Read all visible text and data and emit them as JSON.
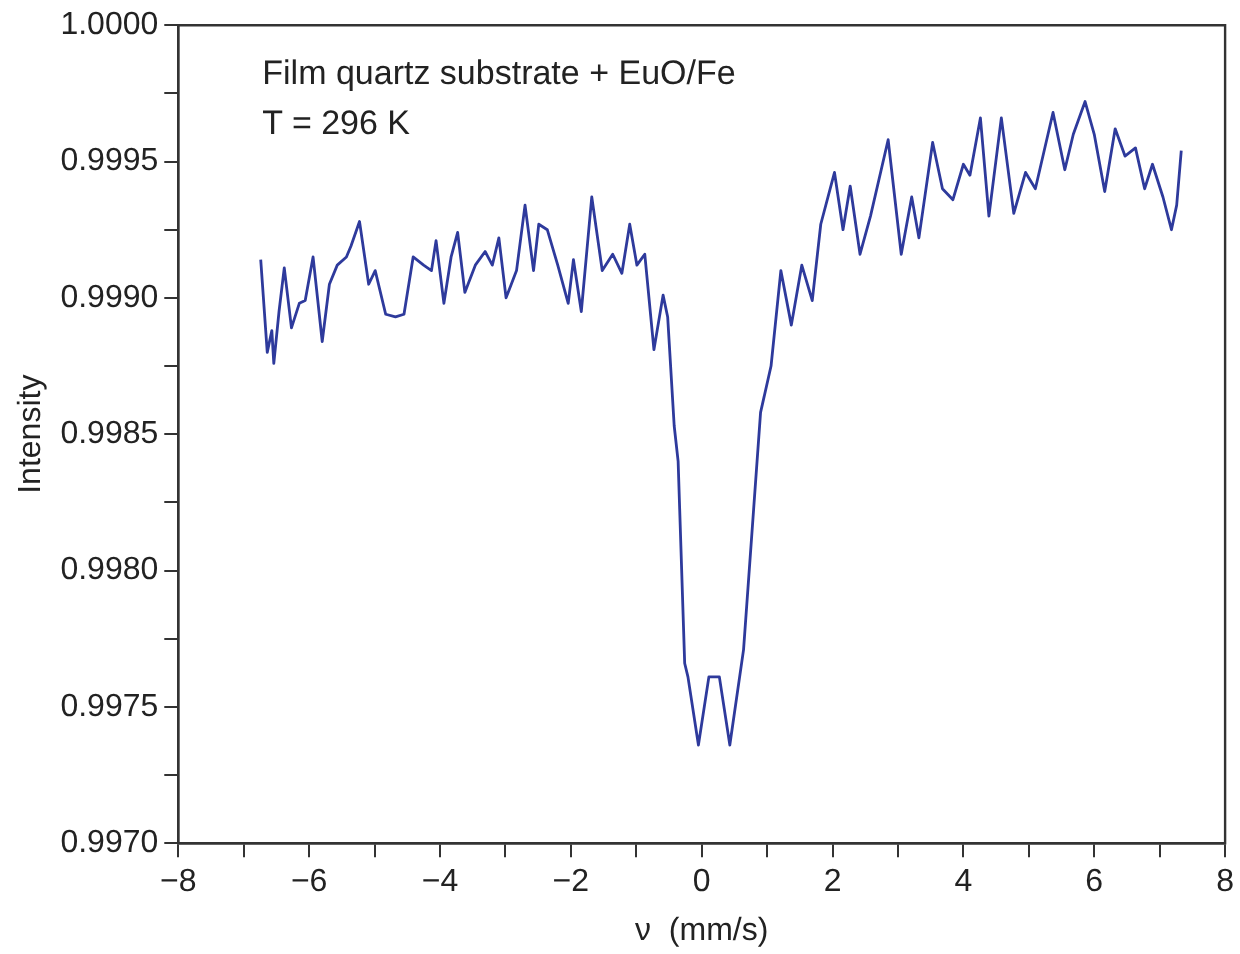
{
  "chart_data": {
    "type": "line",
    "xlabel": "ν  (mm/s)",
    "ylabel": "Intensity",
    "annotations": [
      "Film quartz substrate + EuO/Fe",
      "T = 296 K"
    ],
    "xlim": [
      -8,
      8
    ],
    "ylim": [
      0.997,
      1.0
    ],
    "xticks": [
      -8,
      {
        "value": -7,
        "label": null
      },
      -6,
      {
        "value": -5,
        "label": null
      },
      -4,
      {
        "value": -3,
        "label": null
      },
      -2,
      {
        "value": -1,
        "label": null
      },
      0,
      {
        "value": 1,
        "label": null
      },
      2,
      {
        "value": 3,
        "label": null
      },
      4,
      {
        "value": 5,
        "label": null
      },
      6,
      {
        "value": 7,
        "label": null
      },
      8
    ],
    "yticks": [
      {
        "value": 0.997,
        "label": "0.9970"
      },
      {
        "value": 0.99725,
        "label": null
      },
      {
        "value": 0.9975,
        "label": "0.9975"
      },
      {
        "value": 0.99775,
        "label": null
      },
      {
        "value": 0.998,
        "label": "0.9980"
      },
      {
        "value": 0.99825,
        "label": null
      },
      {
        "value": 0.9985,
        "label": "0.9985"
      },
      {
        "value": 0.99875,
        "label": null
      },
      {
        "value": 0.999,
        "label": "0.9990"
      },
      {
        "value": 0.99925,
        "label": null
      },
      {
        "value": 0.9995,
        "label": "0.9995"
      },
      {
        "value": 0.99975,
        "label": null
      },
      {
        "value": 1.0,
        "label": "1.0000"
      }
    ],
    "grid": false,
    "legend": false,
    "marker": "none",
    "line_style": "solid",
    "series": [
      {
        "color": "#2e3a9c",
        "x": [
          -6.74,
          -6.64,
          -6.57,
          -6.54,
          -6.46,
          -6.38,
          -6.27,
          -6.15,
          -6.06,
          -5.94,
          -5.8,
          -5.69,
          -5.57,
          -5.43,
          -5.36,
          -5.23,
          -5.09,
          -4.99,
          -4.83,
          -4.68,
          -4.55,
          -4.41,
          -4.25,
          -4.13,
          -4.06,
          -3.94,
          -3.83,
          -3.73,
          -3.62,
          -3.46,
          -3.31,
          -3.2,
          -3.1,
          -2.99,
          -2.83,
          -2.7,
          -2.57,
          -2.49,
          -2.36,
          -2.2,
          -2.04,
          -1.96,
          -1.84,
          -1.68,
          -1.52,
          -1.36,
          -1.22,
          -1.1,
          -0.99,
          -0.87,
          -0.73,
          -0.59,
          -0.52,
          -0.42,
          -0.36,
          -0.26,
          -0.21,
          -0.05,
          0.11,
          0.27,
          0.43,
          0.64,
          0.9,
          1.06,
          1.21,
          1.37,
          1.53,
          1.69,
          1.82,
          2.03,
          2.16,
          2.27,
          2.42,
          2.58,
          2.85,
          3.05,
          3.21,
          3.32,
          3.53,
          3.68,
          3.84,
          4.0,
          4.1,
          4.26,
          4.39,
          4.58,
          4.77,
          4.95,
          5.1,
          5.37,
          5.55,
          5.68,
          5.86,
          6.0,
          6.16,
          6.32,
          6.47,
          6.63,
          6.77,
          6.89,
          7.05,
          7.18,
          7.26,
          7.33
        ],
        "values": [
          0.99914,
          0.9988,
          0.99888,
          0.99876,
          0.99895,
          0.99911,
          0.99889,
          0.99898,
          0.99899,
          0.99915,
          0.99884,
          0.99905,
          0.99912,
          0.99915,
          0.99919,
          0.99928,
          0.99905,
          0.9991,
          0.99894,
          0.99893,
          0.99894,
          0.99915,
          0.99912,
          0.9991,
          0.99921,
          0.99898,
          0.99915,
          0.99924,
          0.99902,
          0.99912,
          0.99917,
          0.99912,
          0.99922,
          0.999,
          0.9991,
          0.99934,
          0.9991,
          0.99927,
          0.99925,
          0.99912,
          0.99898,
          0.99914,
          0.99895,
          0.99937,
          0.9991,
          0.99916,
          0.99909,
          0.99927,
          0.99912,
          0.99916,
          0.99881,
          0.99901,
          0.99893,
          0.99853,
          0.9984,
          0.99766,
          0.99761,
          0.99736,
          0.99761,
          0.99761,
          0.99736,
          0.99771,
          0.99858,
          0.99875,
          0.9991,
          0.9989,
          0.99912,
          0.99899,
          0.99927,
          0.99946,
          0.99925,
          0.99941,
          0.99916,
          0.9993,
          0.99958,
          0.99916,
          0.99937,
          0.99922,
          0.99957,
          0.9994,
          0.99936,
          0.99949,
          0.99945,
          0.99966,
          0.9993,
          0.99966,
          0.99931,
          0.99946,
          0.9994,
          0.99968,
          0.99947,
          0.9996,
          0.99972,
          0.9996,
          0.99939,
          0.99962,
          0.99952,
          0.99955,
          0.9994,
          0.99949,
          0.99937,
          0.99925,
          0.99934,
          0.99954
        ]
      }
    ]
  }
}
